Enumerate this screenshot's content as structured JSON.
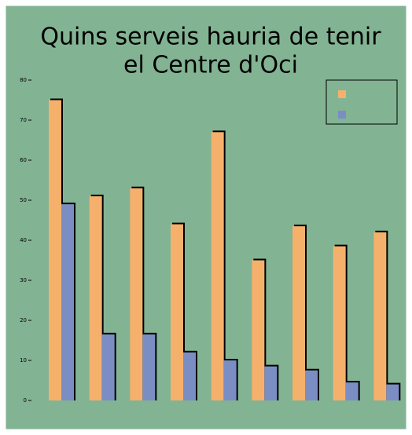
{
  "chart_data": {
    "type": "bar",
    "title": [
      "Quins serveis hauria de tenir",
      "el Centre d'Oci"
    ],
    "categories": [
      null,
      null,
      null,
      null,
      null,
      null,
      null,
      null,
      null
    ],
    "series": [
      {
        "color": "#f5b06c",
        "values": [
          75,
          51,
          53,
          44,
          67,
          35,
          43.5,
          38.5,
          42
        ]
      },
      {
        "color": "#7b8ec4",
        "values": [
          49,
          16.5,
          16.5,
          12,
          10,
          8.5,
          7.5,
          4.5,
          4
        ]
      }
    ],
    "ylim": [
      0,
      80
    ],
    "yticks": [
      0,
      10,
      20,
      30,
      40,
      50,
      60,
      70,
      80
    ],
    "legend": "top-right"
  }
}
